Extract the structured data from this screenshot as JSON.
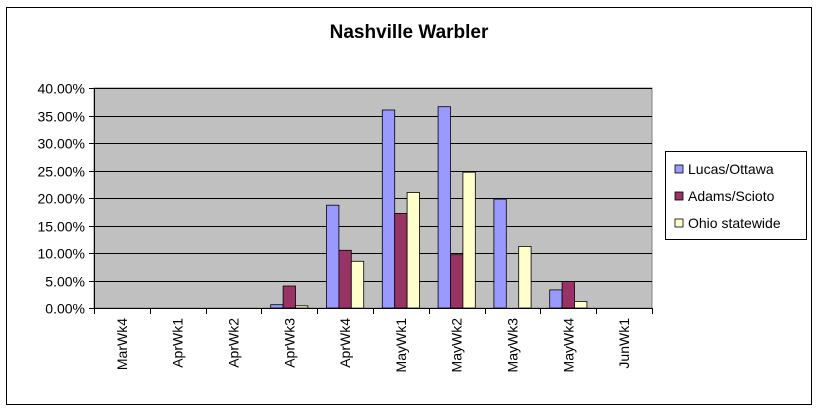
{
  "chart_data": {
    "type": "bar",
    "title": "Nashville Warbler",
    "xlabel": "",
    "ylabel": "",
    "categories": [
      "MarWk4",
      "AprWk1",
      "AprWk2",
      "AprWk3",
      "AprWk4",
      "MayWk1",
      "MayWk2",
      "MayWk3",
      "MayWk4",
      "JunWk1"
    ],
    "ylim": [
      0,
      0.4
    ],
    "yticks": [
      "0.00%",
      "5.00%",
      "10.00%",
      "15.00%",
      "20.00%",
      "25.00%",
      "30.00%",
      "35.00%",
      "40.00%"
    ],
    "grid": true,
    "legend_position": "right",
    "series": [
      {
        "name": "Lucas/Ottawa",
        "color": "#9999ff",
        "values": [
          0,
          0,
          0,
          0.006,
          0.187,
          0.36,
          0.366,
          0.198,
          0.033,
          0
        ]
      },
      {
        "name": "Adams/Scioto",
        "color": "#993366",
        "values": [
          0,
          0,
          0,
          0.04,
          0.105,
          0.172,
          0.097,
          0,
          0.048,
          0
        ]
      },
      {
        "name": "Ohio statewide",
        "color": "#ffffcc",
        "values": [
          0,
          0,
          0,
          0.004,
          0.085,
          0.21,
          0.247,
          0.112,
          0.012,
          0
        ]
      }
    ],
    "colors": {
      "plot_background": "#c0c0c0",
      "frame": "#000000"
    }
  }
}
